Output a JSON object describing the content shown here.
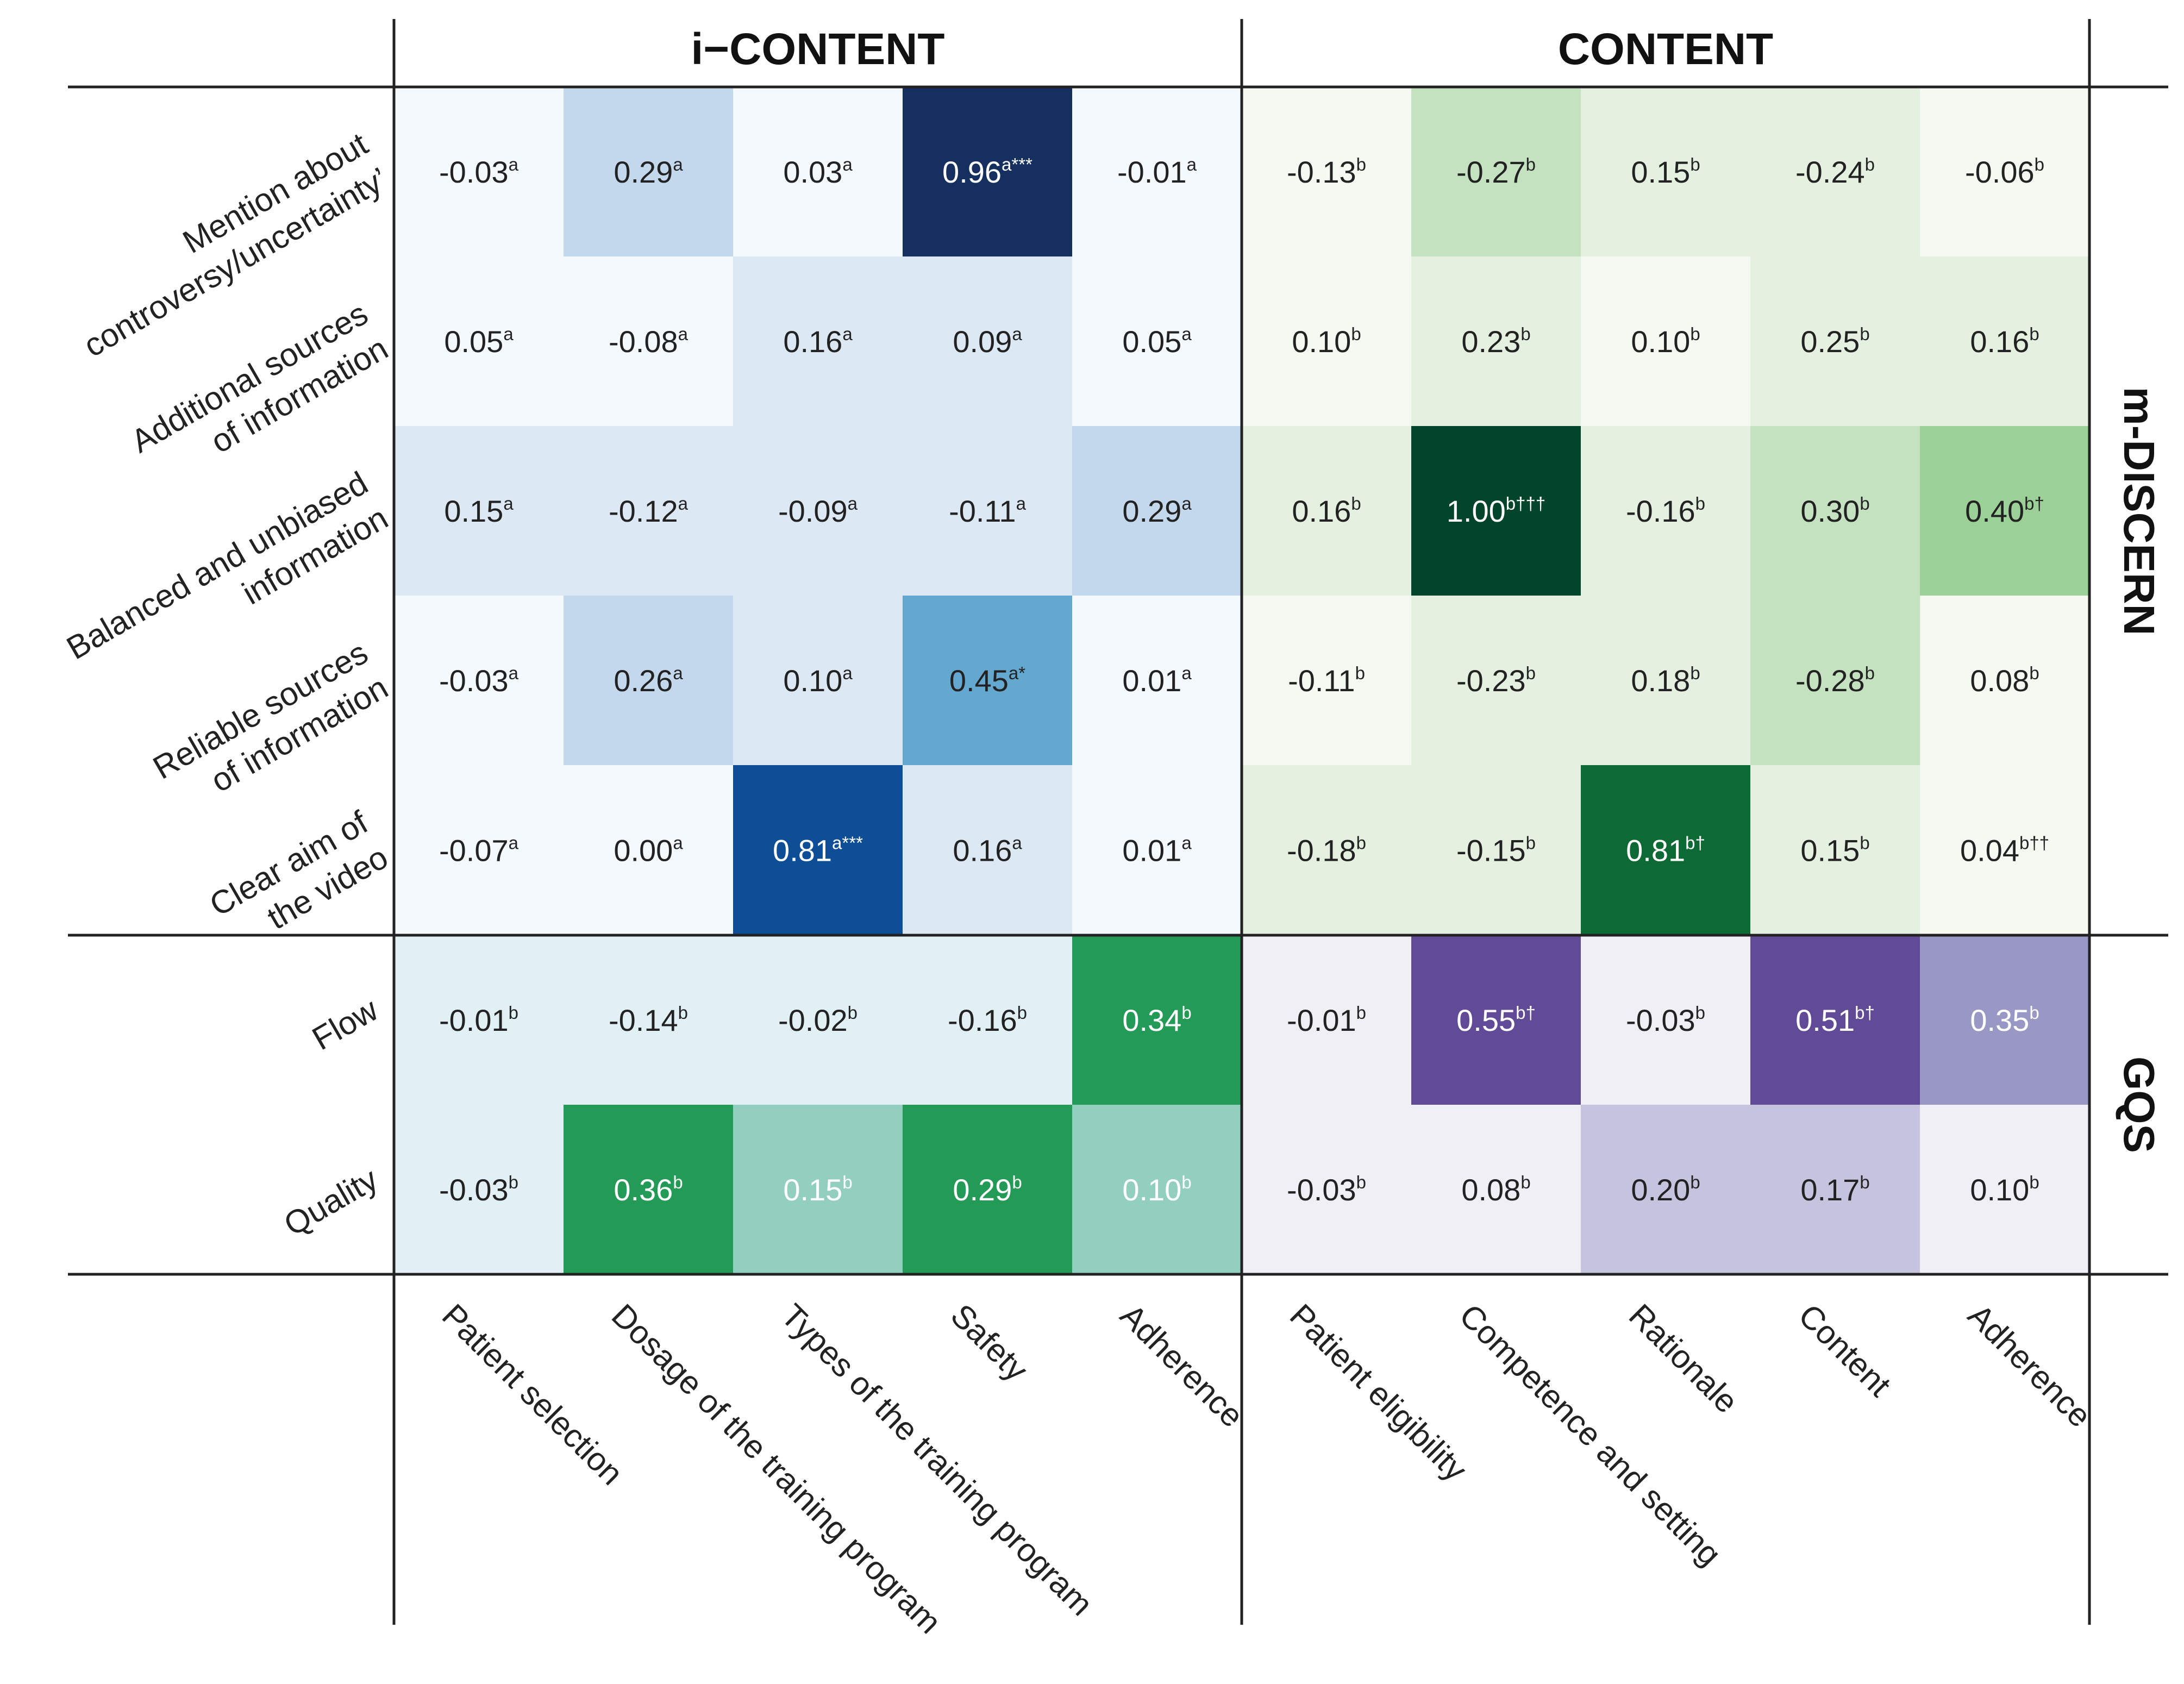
{
  "chart_data": {
    "type": "heatmap",
    "column_groups": [
      {
        "label": "i−CONTENT",
        "columns": [
          "Patient selection",
          "Dosage of the training program",
          "Types of the training program",
          "Safety",
          "Adherence"
        ]
      },
      {
        "label": "CONTENT",
        "columns": [
          "Patient eligibility",
          "Competence and setting",
          "Rationale",
          "Content",
          "Adherence"
        ]
      }
    ],
    "row_groups": [
      {
        "label": "m-DISCERN",
        "rows": [
          {
            "label": [
              "Mention about",
              "controversy/uncertainty’"
            ]
          },
          {
            "label": [
              "Additional sources",
              "of information"
            ]
          },
          {
            "label": [
              "Balanced and unbiased",
              "information"
            ]
          },
          {
            "label": [
              "Reliable sources",
              "of information"
            ]
          },
          {
            "label": [
              "Clear aim of",
              "the video"
            ]
          }
        ]
      },
      {
        "label": "GQS",
        "rows": [
          {
            "label": [
              "Flow"
            ]
          },
          {
            "label": [
              "Quality"
            ]
          }
        ]
      }
    ],
    "values": [
      [
        "-0.03",
        "0.29",
        "0.03",
        "0.96",
        "-0.01",
        "-0.13",
        "-0.27",
        "0.15",
        "-0.24",
        "-0.06"
      ],
      [
        "0.05",
        "-0.08",
        "0.16",
        "0.09",
        "0.05",
        "0.10",
        "0.23",
        "0.10",
        "0.25",
        "0.16"
      ],
      [
        "0.15",
        "-0.12",
        "-0.09",
        "-0.11",
        "0.29",
        "0.16",
        "1.00",
        "-0.16",
        "0.30",
        "0.40"
      ],
      [
        "-0.03",
        "0.26",
        "0.10",
        "0.45",
        "0.01",
        "-0.11",
        "-0.23",
        "0.18",
        "-0.28",
        "0.08"
      ],
      [
        "-0.07",
        "0.00",
        "0.81",
        "0.16",
        "0.01",
        "-0.18",
        "-0.15",
        "0.81",
        "0.15",
        "0.04"
      ],
      [
        "-0.01",
        "-0.14",
        "-0.02",
        "-0.16",
        "0.34",
        "-0.01",
        "0.55",
        "-0.03",
        "0.51",
        "0.35"
      ],
      [
        "-0.03",
        "0.36",
        "0.15",
        "0.29",
        "0.10",
        "-0.03",
        "0.08",
        "0.20",
        "0.17",
        "0.10"
      ]
    ],
    "superscripts": [
      [
        "a",
        "a",
        "a",
        "a***",
        "a",
        "b",
        "b",
        "b",
        "b",
        "b"
      ],
      [
        "a",
        "a",
        "a",
        "a",
        "a",
        "b",
        "b",
        "b",
        "b",
        "b"
      ],
      [
        "a",
        "a",
        "a",
        "a",
        "a",
        "b",
        "b†††",
        "b",
        "b",
        "b†"
      ],
      [
        "a",
        "a",
        "a",
        "a*",
        "a",
        "b",
        "b",
        "b",
        "b",
        "b"
      ],
      [
        "a",
        "a",
        "a***",
        "a",
        "a",
        "b",
        "b",
        "b†",
        "b",
        "b††"
      ],
      [
        "b",
        "b",
        "b",
        "b",
        "b",
        "b",
        "b†",
        "b",
        "b†",
        "b"
      ],
      [
        "b",
        "b",
        "b",
        "b",
        "b",
        "b",
        "b",
        "b",
        "b",
        "b"
      ]
    ],
    "cell_colors": [
      [
        "#f4f9fd",
        "#c3d8ec",
        "#f4f9fd",
        "#15305e",
        "#f4f9fd",
        "#f4f9f1",
        "#c4e2c0",
        "#e5f1e0",
        "#e5f1e0",
        "#f4f9f1"
      ],
      [
        "#f4f9fd",
        "#f4f9fd",
        "#dce8f4",
        "#dce8f4",
        "#f4f9fd",
        "#f4f9f1",
        "#e5f1e0",
        "#f4f9f1",
        "#e5f1e0",
        "#e5f1e0"
      ],
      [
        "#dce8f4",
        "#dce8f4",
        "#dce8f4",
        "#dce8f4",
        "#c3d8ec",
        "#e5f1e0",
        "#03452a",
        "#e5f1e0",
        "#c4e2c0",
        "#9bd097"
      ],
      [
        "#f4f9fd",
        "#c3d8ec",
        "#dce8f4",
        "#64a7cf",
        "#f4f9fd",
        "#f4f9f1",
        "#e5f1e0",
        "#e5f1e0",
        "#c4e2c0",
        "#f4f9f1"
      ],
      [
        "#f4f9fd",
        "#f4f9fd",
        "#0d4e96",
        "#dce8f4",
        "#f4f9fd",
        "#e5f1e0",
        "#e5f1e0",
        "#0d6a35",
        "#e5f1e0",
        "#f4f9f1"
      ],
      [
        "#e1f0f5",
        "#e1f0f5",
        "#e1f0f5",
        "#e1f0f5",
        "#249a57",
        "#f0eff5",
        "#624b96",
        "#f0eff5",
        "#624b96",
        "#9997c3"
      ],
      [
        "#e1f0f5",
        "#249a57",
        "#93cfbf",
        "#249a57",
        "#93cfbf",
        "#f0eff5",
        "#f0eff5",
        "#c6c3de",
        "#c6c3de",
        "#f0eff5"
      ]
    ],
    "text_colors": [
      [
        "#222222",
        "#222222",
        "#222222",
        "#ffffff",
        "#222222",
        "#222222",
        "#222222",
        "#222222",
        "#222222",
        "#222222"
      ],
      [
        "#222222",
        "#222222",
        "#222222",
        "#222222",
        "#222222",
        "#222222",
        "#222222",
        "#222222",
        "#222222",
        "#222222"
      ],
      [
        "#222222",
        "#222222",
        "#222222",
        "#222222",
        "#222222",
        "#222222",
        "#ffffff",
        "#222222",
        "#222222",
        "#222222"
      ],
      [
        "#222222",
        "#222222",
        "#222222",
        "#222222",
        "#222222",
        "#222222",
        "#222222",
        "#222222",
        "#222222",
        "#222222"
      ],
      [
        "#222222",
        "#222222",
        "#ffffff",
        "#222222",
        "#222222",
        "#222222",
        "#222222",
        "#ffffff",
        "#222222",
        "#222222"
      ],
      [
        "#222222",
        "#222222",
        "#222222",
        "#222222",
        "#ffffff",
        "#222222",
        "#ffffff",
        "#222222",
        "#ffffff",
        "#ffffff"
      ],
      [
        "#222222",
        "#ffffff",
        "#ffffff",
        "#ffffff",
        "#ffffff",
        "#222222",
        "#222222",
        "#222222",
        "#222222",
        "#222222"
      ]
    ],
    "grid": false,
    "legend": "none"
  }
}
